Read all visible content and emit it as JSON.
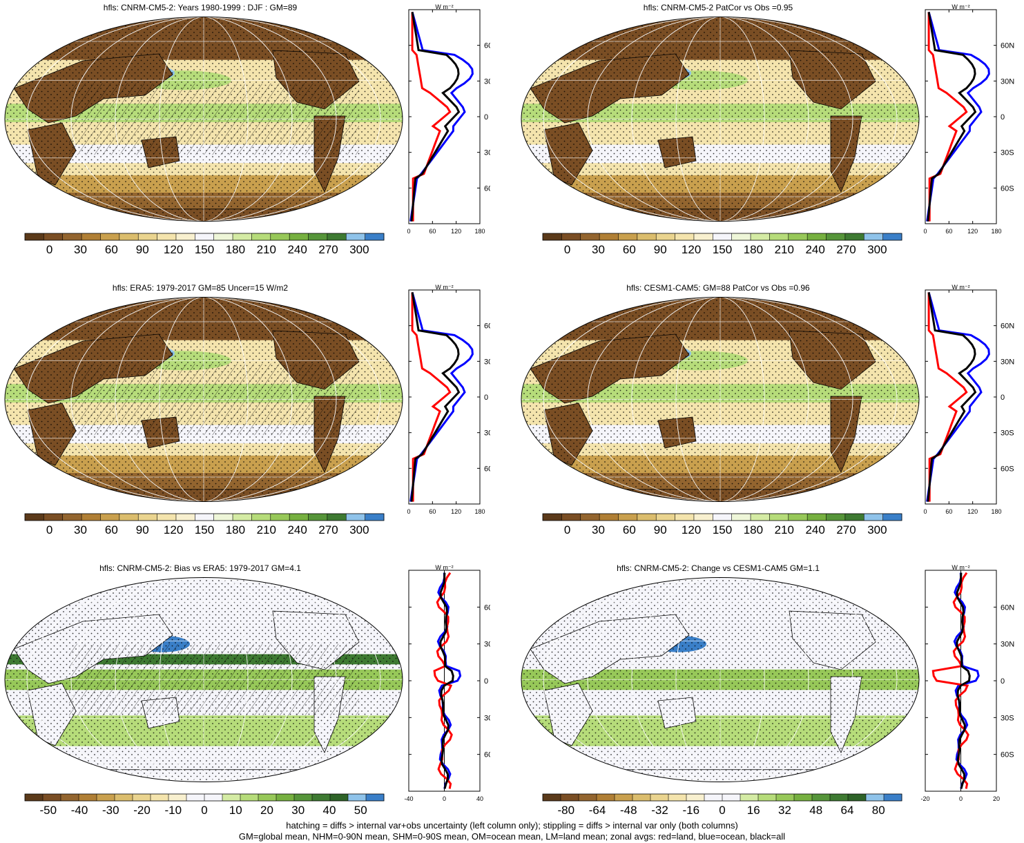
{
  "panels": [
    {
      "title": "hfls: CNRM-CM5-2: Years 1980-1999 : DJF : GM=89",
      "kind": "mean",
      "hatch": true
    },
    {
      "title": "hfls: CNRM-CM5-2 PatCor vs Obs =0.95",
      "kind": "mean",
      "hatch": false
    },
    {
      "title": "hfls: ERA5: 1979-2017 GM=85 Uncer=15 W/m2",
      "kind": "mean",
      "hatch": true
    },
    {
      "title": "hfls: CESM1-CAM5: GM=88 PatCor vs Obs =0.96",
      "kind": "mean",
      "hatch": false
    },
    {
      "title": "hfls: CNRM-CM5-2: Bias vs ERA5: 1979-2017 GM=4.1",
      "kind": "bias",
      "hatch": true
    },
    {
      "title": "hfls: CNRM-CM5-2: Change vs CESM1-CAM5 GM=1.1",
      "kind": "change",
      "hatch": false
    }
  ],
  "zonal_unit": "W m⁻²",
  "zonal_lat_labels": [
    "60N",
    "30N",
    "0",
    "30S",
    "60S"
  ],
  "zonal_x_ticks": {
    "mean": [
      "0",
      "60",
      "120",
      "180"
    ],
    "bias": [
      "-40",
      "0",
      "40"
    ],
    "change": [
      "-20",
      "0",
      "20"
    ]
  },
  "colorbars": {
    "mean": [
      "0",
      "30",
      "60",
      "90",
      "120",
      "150",
      "180",
      "210",
      "240",
      "270",
      "300"
    ],
    "bias": [
      "-50",
      "-40",
      "-30",
      "-20",
      "-10",
      "0",
      "10",
      "20",
      "30",
      "40",
      "50"
    ],
    "change": [
      "-80",
      "-64",
      "-48",
      "-32",
      "-16",
      "0",
      "16",
      "32",
      "48",
      "64",
      "80"
    ]
  },
  "colors": {
    "mean": [
      "#5b3a1a",
      "#7a4e24",
      "#93652f",
      "#b07f35",
      "#c9a04e",
      "#dbbd6d",
      "#ead48f",
      "#f4e4ad",
      "#f8f0cf",
      "#f5f5fa",
      "#eef6d8",
      "#d4eba4",
      "#b6dc7a",
      "#97c859",
      "#76b040",
      "#56953a",
      "#3e7a32",
      "#8fc3ea",
      "#3a7fc8"
    ],
    "bias": [
      "#5b3a1a",
      "#7a4e24",
      "#93652f",
      "#b07f35",
      "#c9a04e",
      "#dbbd6d",
      "#ead48f",
      "#f4e4ad",
      "#f8f0cf",
      "#f5f5fa",
      "#f5f5fa",
      "#d4eba4",
      "#b6dc7a",
      "#97c859",
      "#76b040",
      "#56953a",
      "#3e7a32",
      "#2e6328",
      "#8fc3ea",
      "#3a7fc8"
    ],
    "land": "#ff0000",
    "ocean": "#0000ff",
    "all": "#000000"
  },
  "footer": [
    "hatching = diffs > internal var+obs uncertainty (left column only); stippling = diffs > internal var only (both columns)",
    "GM=global mean, NHM=0-90N mean, SHM=0-90S mean, OM=ocean mean, LM=land mean; zonal avgs: red=land, blue=ocean, black=all"
  ]
}
